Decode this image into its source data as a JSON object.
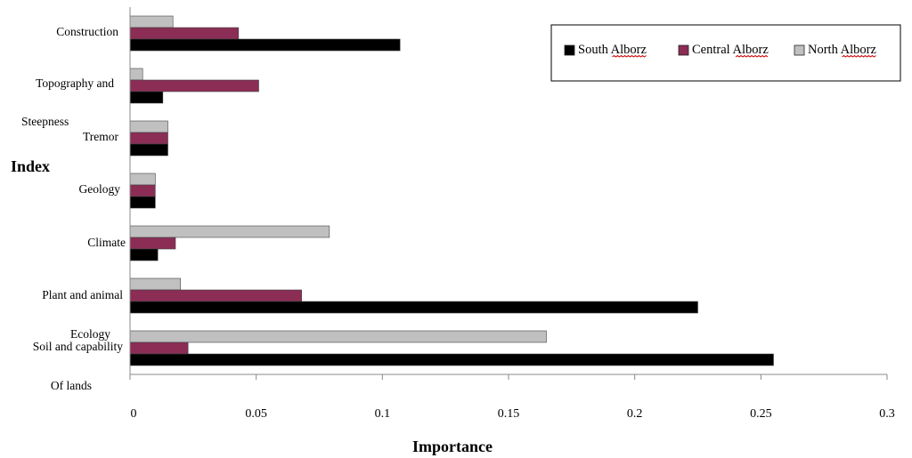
{
  "chart_data": {
    "type": "bar",
    "orientation": "horizontal",
    "ylabel": "Index",
    "xlabel": "Importance",
    "xlim": [
      0,
      0.3
    ],
    "x_ticks": [
      "0",
      "0.05",
      "0.1",
      "0.15",
      "0.2",
      "0.25",
      "0.3"
    ],
    "categories": [
      "Construction",
      "Topography and Steepness",
      "Tremor",
      "Geology",
      "Climate",
      "Plant and animal Ecology",
      "Soil and capability Of lands"
    ],
    "category_label_lines": [
      [
        "Construction"
      ],
      [
        "Topography and",
        "Steepness"
      ],
      [
        "Tremor"
      ],
      [
        "Geology"
      ],
      [
        "Climate"
      ],
      [
        "Plant and animal",
        "Ecology"
      ],
      [
        "Soil and capability",
        "Of lands"
      ]
    ],
    "series": [
      {
        "name": "North Alborz",
        "color": "#c0c0c0",
        "values": [
          0.017,
          0.005,
          0.015,
          0.01,
          0.079,
          0.02,
          0.165
        ]
      },
      {
        "name": "Central Alborz",
        "color": "#8b2d55",
        "values": [
          0.043,
          0.051,
          0.015,
          0.01,
          0.018,
          0.068,
          0.023
        ]
      },
      {
        "name": "South Alborz",
        "color": "#000000",
        "values": [
          0.107,
          0.013,
          0.015,
          0.01,
          0.011,
          0.225,
          0.255
        ]
      }
    ],
    "legend": {
      "placement": "top-right",
      "order": [
        "South Alborz",
        "Central Alborz",
        "North Alborz"
      ]
    },
    "grid": false
  }
}
